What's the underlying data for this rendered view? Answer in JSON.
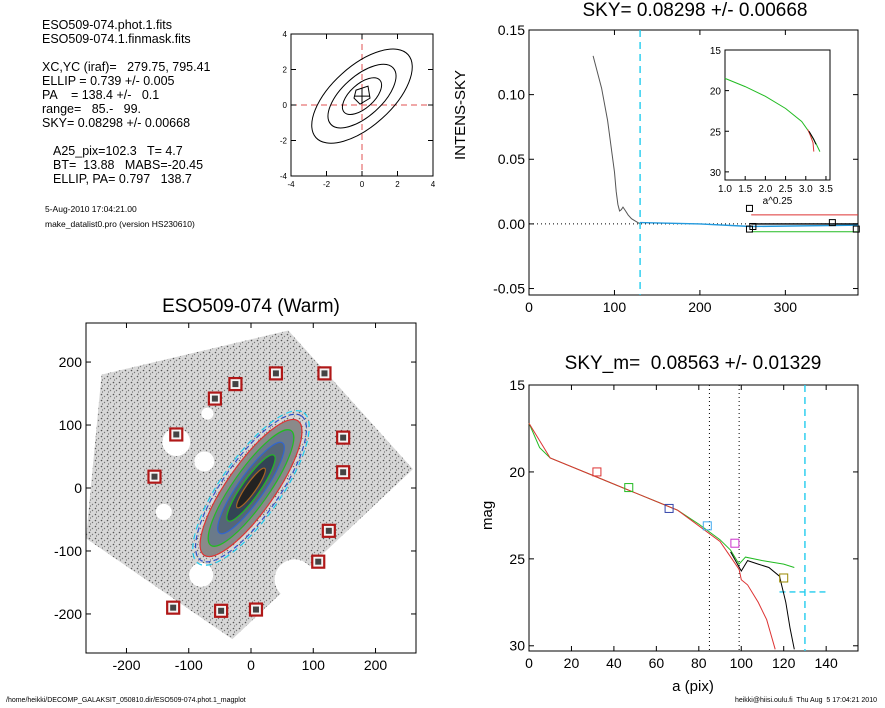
{
  "info": {
    "file1": "ESO509-074.phot.1.fits",
    "file2": "ESO509-074.1.finmask.fits",
    "xcyc": "XC,YC (iraf)=   279.75, 795.41",
    "ellip": "ELLIP = 0.739 +/- 0.005",
    "pa": "PA    = 138.4 +/-   0.1",
    "range": "range=   85.-   99.",
    "sky": "SKY= 0.08298 +/- 0.00668",
    "a25": "A25_pix=102.3   T= 4.7",
    "bt": "BT=  13.88   MABS=-20.45",
    "ellip_pa": "ELLIP, PA= 0.797   138.7",
    "date": "5-Aug-2010 17:04:21.00",
    "prog": "make_datalist0.pro (version HS230610)"
  },
  "footer": {
    "path": "/home/heikki/DECOMP_GALAKSIT_050810.dir/ESO509-074.phot.1_magplot",
    "user": "heikki@hiisi.oulu.fi  Thu Aug  5 17:04:21 2010"
  },
  "chart_data": [
    {
      "id": "contour",
      "type": "contour",
      "title": "",
      "xlim": [
        -4,
        4
      ],
      "ylim": [
        -4,
        4
      ],
      "xticks": [
        "-4",
        "-2",
        "0",
        "2",
        "4"
      ],
      "yticks": [
        "4",
        "2",
        "0",
        "-2",
        "-4"
      ],
      "guide_color": "#e05050"
    },
    {
      "id": "sky",
      "type": "line",
      "title": "SKY= 0.08298 +/- 0.00668",
      "ylabel": "INTENS-SKY",
      "xlabel": "",
      "xlim": [
        0,
        385
      ],
      "ylim": [
        -0.055,
        0.15
      ],
      "xticks": [
        "0",
        "100",
        "200",
        "300"
      ],
      "yticks": [
        "0.15",
        "0.10",
        "0.05",
        "0.00",
        "-0.05"
      ],
      "profile_x": [
        65,
        75,
        85,
        92,
        97,
        100,
        102,
        104,
        106,
        108,
        110,
        113,
        116,
        120,
        125,
        130
      ],
      "profile_y": [
        0.155,
        0.13,
        0.105,
        0.08,
        0.055,
        0.04,
        0.025,
        0.015,
        0.01,
        0.011,
        0.013,
        0.01,
        0.007,
        0.004,
        0.002,
        0.0
      ],
      "sky_cut_x": 130,
      "squares": [
        [
          258,
          0.012
        ],
        [
          258,
          -0.004
        ],
        [
          262,
          -0.002
        ],
        [
          355,
          0.001
        ],
        [
          383,
          -0.004
        ]
      ],
      "inset": {
        "xlabel": "a^0.25",
        "xlim": [
          1.0,
          3.6
        ],
        "ylim": [
          15,
          31
        ],
        "xticks": [
          "1.0",
          "1.5",
          "2.0",
          "2.5",
          "3.0",
          "3.5"
        ],
        "yticks": [
          "15",
          "20",
          "25",
          "30"
        ]
      }
    },
    {
      "id": "image",
      "type": "scatter",
      "title": "ESO509-074 (Warm)",
      "xlim": [
        -265,
        265
      ],
      "ylim": [
        -262,
        262
      ],
      "xticks": [
        "-200",
        "-100",
        "0",
        "100",
        "200"
      ],
      "yticks": [
        "200",
        "100",
        "0",
        "-100",
        "-200"
      ],
      "stars": [
        [
          -120,
          85
        ],
        [
          -58,
          142
        ],
        [
          -25,
          165
        ],
        [
          40,
          182
        ],
        [
          118,
          182
        ],
        [
          148,
          80
        ],
        [
          148,
          25
        ],
        [
          -155,
          18
        ],
        [
          125,
          -68
        ],
        [
          108,
          -117
        ],
        [
          -125,
          -190
        ],
        [
          -48,
          -195
        ],
        [
          8,
          -193
        ]
      ],
      "star_color": "#b01818"
    },
    {
      "id": "mag",
      "type": "line",
      "title": "SKY_m=  0.08563 +/- 0.01329",
      "xlabel": "a (pix)",
      "ylabel": "mag",
      "xlim": [
        0,
        155
      ],
      "ylim": [
        15,
        30.3
      ],
      "xticks": [
        "0",
        "20",
        "40",
        "60",
        "80",
        "100",
        "120",
        "140"
      ],
      "yticks": [
        "15",
        "20",
        "25",
        "30"
      ],
      "vlines_dotted": [
        85,
        99
      ],
      "vline_dashed": 130,
      "series": [
        {
          "color": "#22bb22",
          "values": [
            [
              0,
              17.2
            ],
            [
              5,
              18.6
            ],
            [
              10,
              19.2
            ],
            [
              20,
              19.7
            ],
            [
              30,
              20.2
            ],
            [
              40,
              20.7
            ],
            [
              50,
              21.2
            ],
            [
              60,
              21.7
            ],
            [
              70,
              22.2
            ],
            [
              80,
              23.0
            ],
            [
              90,
              23.9
            ],
            [
              95,
              24.5
            ],
            [
              99,
              25.3
            ],
            [
              102,
              24.9
            ],
            [
              110,
              25.1
            ],
            [
              120,
              25.3
            ],
            [
              125,
              25.5
            ]
          ]
        },
        {
          "color": "#dd3333",
          "values": [
            [
              0,
              17.2
            ],
            [
              10,
              19.2
            ],
            [
              30,
              20.2
            ],
            [
              50,
              21.2
            ],
            [
              70,
              22.2
            ],
            [
              90,
              24.0
            ],
            [
              99,
              25.6
            ],
            [
              100,
              26.2
            ],
            [
              103,
              26.5
            ],
            [
              108,
              27.5
            ],
            [
              112,
              28.5
            ],
            [
              116,
              30.2
            ]
          ]
        },
        {
          "color": "#000000",
          "values": [
            [
              95,
              24.6
            ],
            [
              100,
              25.7
            ],
            [
              103,
              25.1
            ],
            [
              108,
              25.3
            ],
            [
              113,
              25.5
            ],
            [
              118,
              26.0
            ],
            [
              121,
              27.5
            ],
            [
              123,
              29.0
            ],
            [
              125,
              30.2
            ]
          ]
        }
      ],
      "squares": [
        [
          32,
          20.0,
          "#dd3333"
        ],
        [
          47,
          20.9,
          "#22bb22"
        ],
        [
          66,
          22.1,
          "#3344aa"
        ],
        [
          84,
          23.1,
          "#44aaee"
        ],
        [
          97,
          24.1,
          "#cc33cc"
        ],
        [
          120,
          26.1,
          "#998800"
        ]
      ],
      "sky_dash_y": 26.9
    }
  ]
}
